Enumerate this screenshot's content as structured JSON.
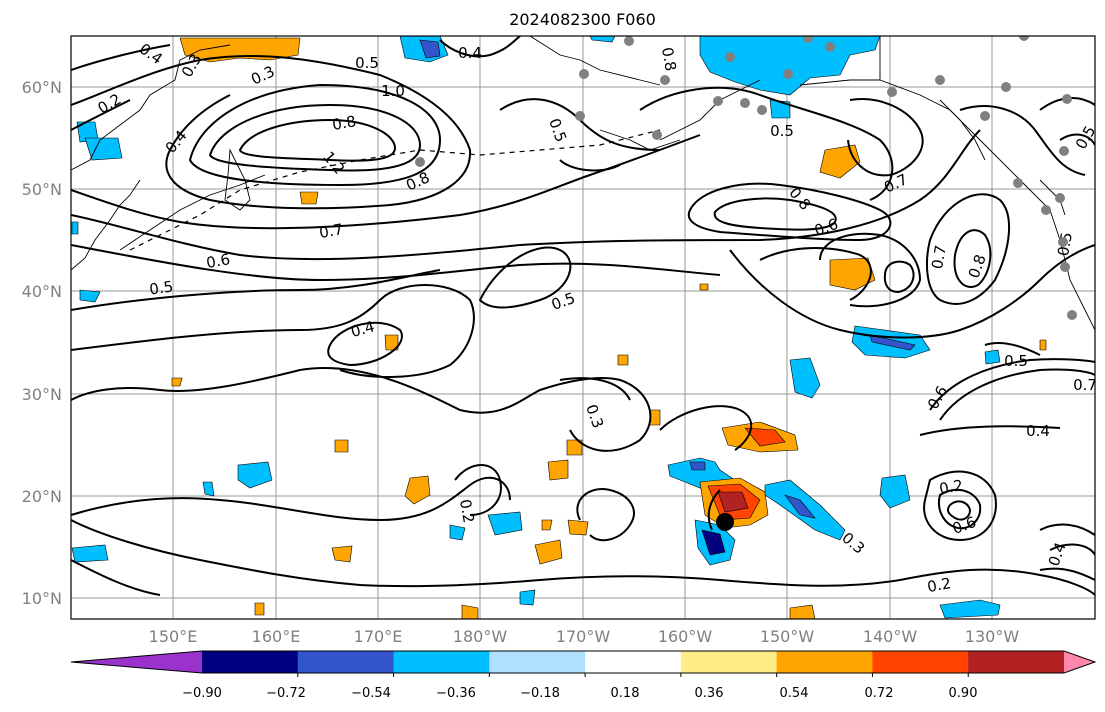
{
  "title": "2024082300 F060",
  "map": {
    "lat_labels": [
      "60°N",
      "50°N",
      "40°N",
      "30°N",
      "20°N",
      "10°N"
    ],
    "lon_labels": [
      "150°E",
      "160°E",
      "170°E",
      "180°W",
      "170°W",
      "160°W",
      "150°W",
      "140°W",
      "130°W"
    ],
    "contour_labels": [
      "0.4",
      "0.3",
      "0.2",
      "0.3",
      "0.5",
      "0.4",
      "1.0",
      "0.4",
      "0.8",
      "1.2",
      "0.8",
      "0.7",
      "0.6",
      "0.5",
      "0.5",
      "0.8",
      "0.5",
      "0.6",
      "0.7",
      "0.8",
      "0.7",
      "0.8",
      "0.5",
      "0.5",
      "0.4",
      "0.5",
      "0.3",
      "0.5",
      "0.7",
      "0.6",
      "0.4",
      "0.2",
      "0.2",
      "0.6",
      "0.3",
      "0.2",
      "0.4"
    ],
    "storm_marker": "tropical-cyclone-center",
    "station_markers": "gray-dots"
  },
  "colorbar": {
    "colors": [
      "#9933cc",
      "#000080",
      "#3355cc",
      "#00bfff",
      "#b0e0ff",
      "#ffffff",
      "#ffee88",
      "#ffa500",
      "#ff4500",
      "#b22222",
      "#ff88aa"
    ],
    "tick_labels": [
      "−0.90",
      "−0.72",
      "−0.54",
      "−0.36",
      "−0.18",
      "0.18",
      "0.36",
      "0.54",
      "0.72",
      "0.90"
    ]
  }
}
